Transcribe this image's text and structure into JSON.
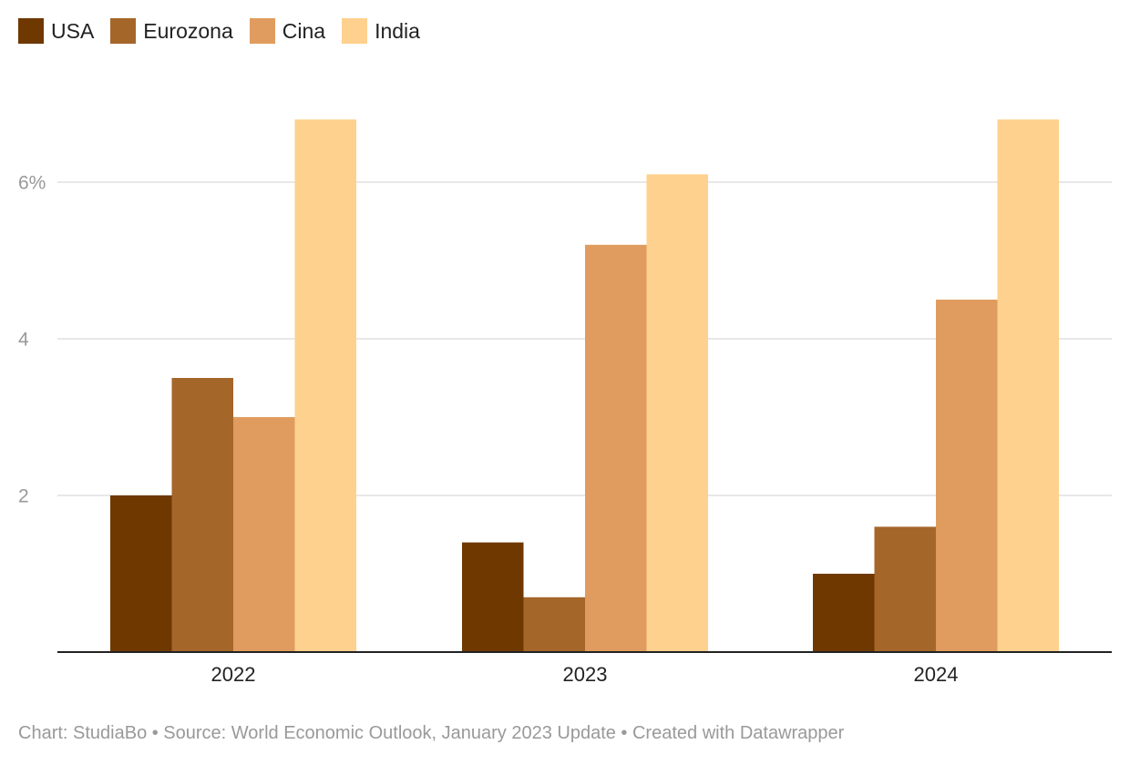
{
  "chart_data": {
    "type": "bar",
    "categories": [
      "2022",
      "2023",
      "2024"
    ],
    "series": [
      {
        "name": "USA",
        "color": "#6f3800",
        "values": [
          2.0,
          1.4,
          1.0
        ]
      },
      {
        "name": "Eurozona",
        "color": "#a5662a",
        "values": [
          3.5,
          0.7,
          1.6
        ]
      },
      {
        "name": "Cina",
        "color": "#e09c5e",
        "values": [
          3.0,
          5.2,
          4.5
        ]
      },
      {
        "name": "India",
        "color": "#fed18e",
        "values": [
          6.8,
          6.1,
          6.8
        ]
      }
    ],
    "yticks": [
      {
        "value": 2,
        "label": "2"
      },
      {
        "value": 4,
        "label": "4"
      },
      {
        "value": 6,
        "label": "6%"
      }
    ],
    "ylim": [
      0,
      7
    ],
    "grid": true,
    "legend_position": "top-left",
    "title": "",
    "xlabel": "",
    "ylabel": ""
  },
  "footer": {
    "text": "Chart: StudiaBo • Source: World Economic Outlook, January 2023 Update • Created with Datawrapper"
  }
}
